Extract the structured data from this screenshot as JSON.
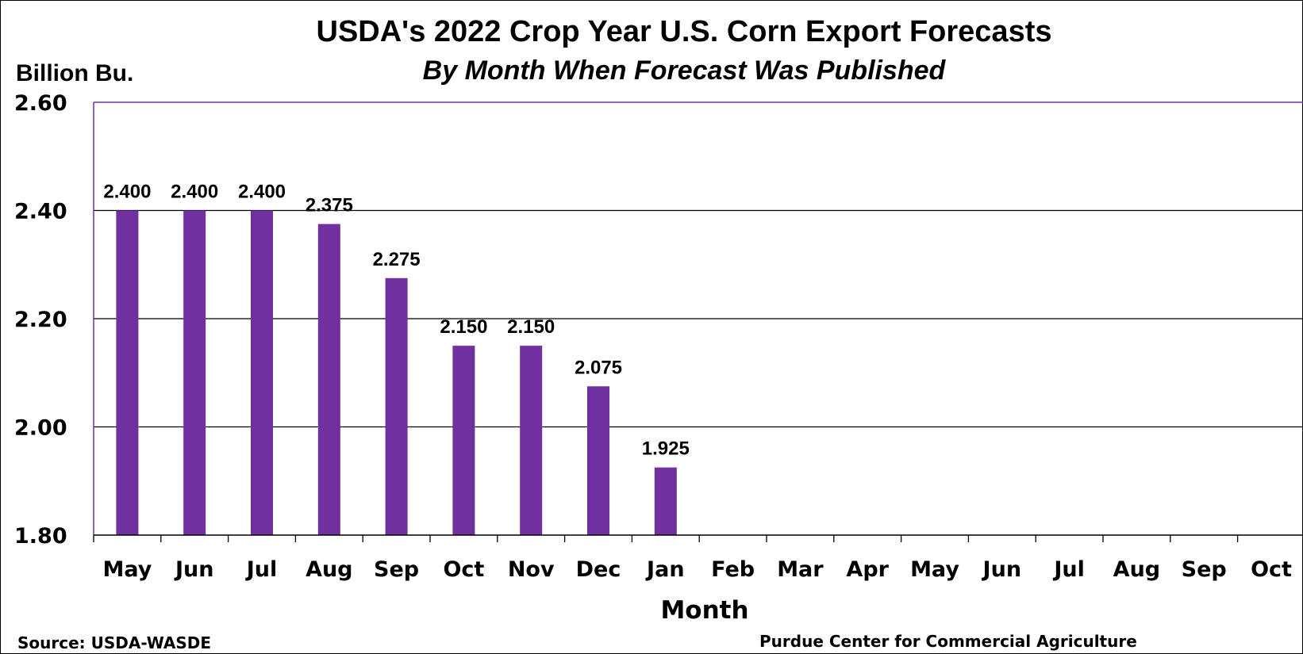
{
  "chart_data": {
    "type": "bar",
    "title": "USDA's 2022 Crop Year U.S. Corn Export Forecasts",
    "subtitle": "By Month When Forecast Was Published",
    "ylabel": "Billion Bu.",
    "xlabel": "Month",
    "ylim": [
      1.8,
      2.6
    ],
    "yticks": [
      "1.80",
      "2.00",
      "2.20",
      "2.40",
      "2.60"
    ],
    "ytick_values": [
      1.8,
      2.0,
      2.2,
      2.4,
      2.6
    ],
    "categories": [
      "May",
      "Jun",
      "Jul",
      "Aug",
      "Sep",
      "Oct",
      "Nov",
      "Dec",
      "Jan",
      "Feb",
      "Mar",
      "Apr",
      "May",
      "Jun",
      "Jul",
      "Aug",
      "Sep",
      "Oct"
    ],
    "values": [
      2.4,
      2.4,
      2.4,
      2.375,
      2.275,
      2.15,
      2.15,
      2.075,
      1.925,
      null,
      null,
      null,
      null,
      null,
      null,
      null,
      null,
      null
    ],
    "data_labels": [
      "2.400",
      "2.400",
      "2.400",
      "2.375",
      "2.275",
      "2.150",
      "2.150",
      "2.075",
      "1.925",
      "",
      "",
      "",
      "",
      "",
      "",
      "",
      "",
      ""
    ],
    "grid": true,
    "legend": "none",
    "bar_color": "#7030A0",
    "plot_border_color": "#7030A0"
  },
  "footer": {
    "source": "Source: USDA-WASDE",
    "credit": "Purdue Center for Commercial Agriculture"
  }
}
